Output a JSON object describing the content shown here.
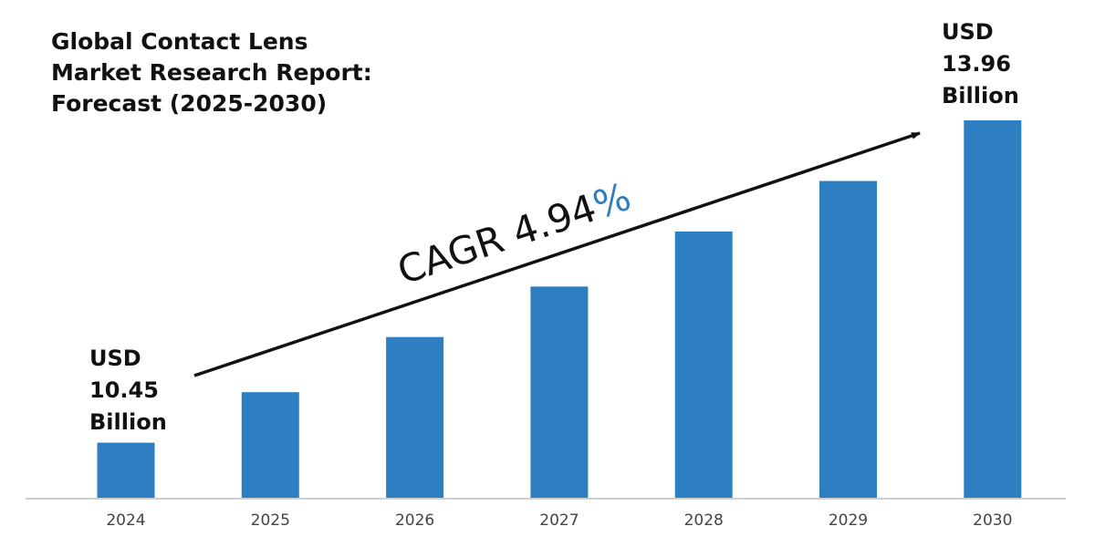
{
  "chart_data": {
    "type": "bar",
    "title_lines": [
      "Global Contact Lens",
      "Market Research Report:",
      "Forecast (2025-2030)"
    ],
    "categories": [
      "2024",
      "2025",
      "2026",
      "2027",
      "2028",
      "2029",
      "2030"
    ],
    "values": [
      10.45,
      11.0,
      11.6,
      12.15,
      12.75,
      13.3,
      13.96
    ],
    "unit": "USD Billion",
    "ylim": [
      9.85,
      13.96
    ],
    "xlabel": "",
    "ylabel": "",
    "grid": false,
    "start_label": [
      "USD",
      "10.45",
      "Billion"
    ],
    "end_label": [
      "USD",
      "13.96",
      "Billion"
    ],
    "cagr": {
      "prefix": "CAGR ",
      "value": "4.94",
      "suffix": "%"
    }
  },
  "colors": {
    "bar": "#2e7fc2",
    "percent": "#2e7fc2",
    "text": "#111111",
    "axis": "#bfbfbf"
  }
}
